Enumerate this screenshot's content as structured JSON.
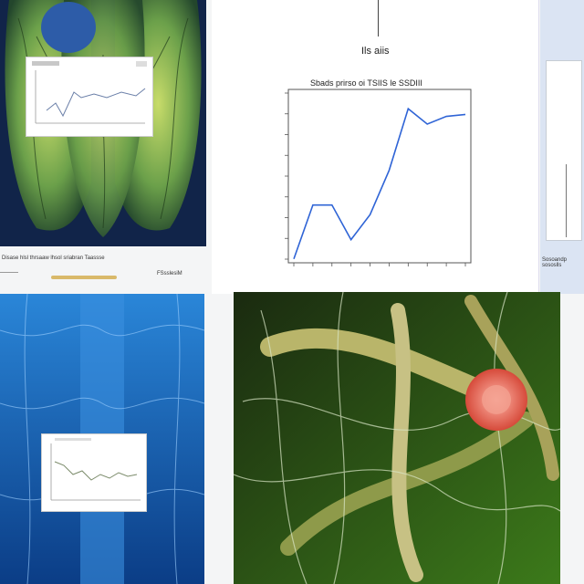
{
  "top_center_label": "Ils aiis",
  "main_chart": {
    "title": "Sbads prirso oi TSIIS le SSDIII"
  },
  "top_left_caption": "Disase hlsl thrsaaw lhsol sriabran Taassse",
  "top_left_sublabel": "FSsslesiM",
  "right_partial_label": "Sosoandp\nsososlls",
  "chart_data": [
    {
      "type": "line",
      "title": "Sbads prirso oi TSIIS le SSDIII",
      "xlabel": "",
      "ylabel": "",
      "x": [
        0,
        1,
        2,
        3,
        4,
        5,
        6,
        7,
        8,
        9
      ],
      "values": [
        2,
        30,
        30,
        12,
        25,
        48,
        80,
        72,
        76,
        77
      ],
      "ylim": [
        0,
        90
      ],
      "grid": false
    },
    {
      "type": "line",
      "x": [
        0,
        1,
        2,
        3,
        4,
        5,
        6,
        7,
        8
      ],
      "values": [
        10,
        25,
        22,
        38,
        30,
        33,
        40,
        37,
        42
      ]
    },
    {
      "type": "line",
      "x": [
        0,
        1,
        2,
        3,
        4,
        5,
        6,
        7,
        8,
        9
      ],
      "values": [
        35,
        30,
        22,
        28,
        18,
        25,
        20,
        28,
        22,
        26
      ]
    }
  ],
  "colors": {
    "line": "#2f64d6",
    "panel_border": "#c5ccd6"
  }
}
